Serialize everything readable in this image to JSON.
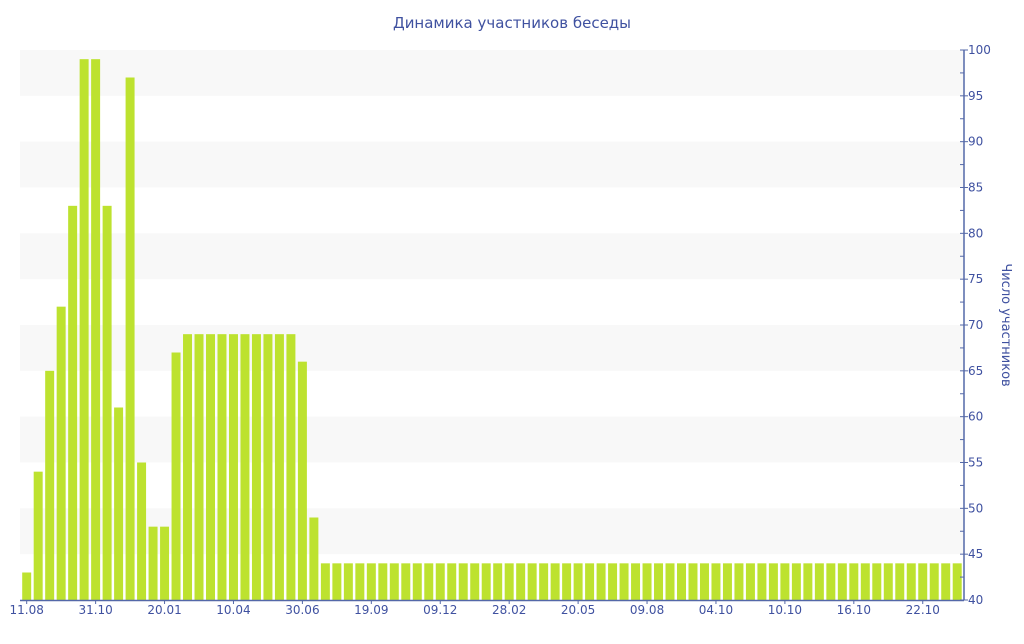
{
  "chart_data": {
    "type": "bar",
    "title": "Динамика участников беседы",
    "ylabel": "Число участников",
    "xlabel": "",
    "ylim": [
      40,
      100
    ],
    "yticks": [
      40,
      45,
      50,
      55,
      60,
      65,
      70,
      75,
      80,
      85,
      90,
      95,
      100
    ],
    "y_axis_side": "right",
    "grid": "alternating horizontal bands",
    "xtick_labels": [
      "11.08",
      "31.10",
      "20.01",
      "10.04",
      "30.06",
      "19.09",
      "09.12",
      "28.02",
      "20.05",
      "09.08",
      "04.10",
      "10.10",
      "16.10",
      "22.10"
    ],
    "xtick_every": 6,
    "values": [
      43,
      54,
      65,
      72,
      83,
      99,
      99,
      83,
      61,
      97,
      55,
      48,
      48,
      67,
      69,
      69,
      69,
      69,
      69,
      69,
      69,
      69,
      69,
      69,
      66,
      49,
      44,
      44,
      44,
      44,
      44,
      44,
      44,
      44,
      44,
      44,
      44,
      44,
      44,
      44,
      44,
      44,
      44,
      44,
      44,
      44,
      44,
      44,
      44,
      44,
      44,
      44,
      44,
      44,
      44,
      44,
      44,
      44,
      44,
      44,
      44,
      44,
      44,
      44,
      44,
      44,
      44,
      44,
      44,
      44,
      44,
      44,
      44,
      44,
      44,
      44,
      44,
      44,
      44,
      44,
      44,
      44
    ],
    "colors": {
      "bar": "#bde22f",
      "axis": "#5468a8",
      "text": "#3f51a0",
      "band": "#f8f8f8"
    }
  }
}
